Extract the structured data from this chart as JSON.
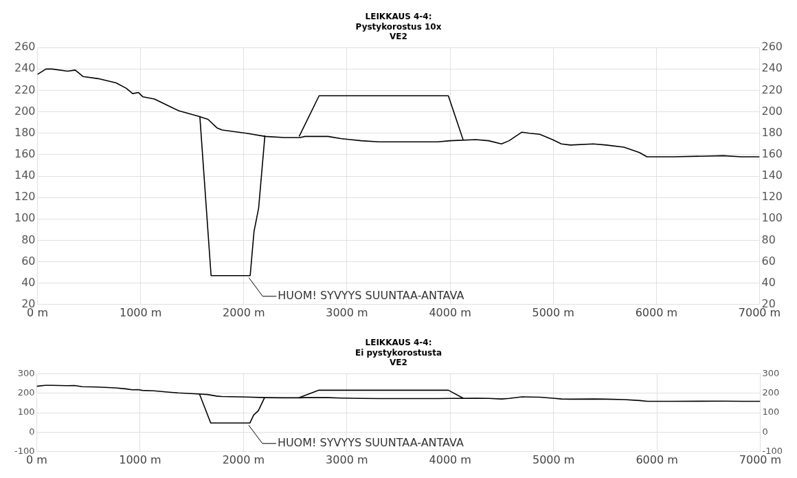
{
  "chart_data": [
    {
      "type": "line",
      "title": "LEIKKAUS 4-4:",
      "subtitle": "Pystykorostus 10x\nVE2",
      "series": [
        {
          "type": "line",
          "color": "#000000",
          "x": [
            0,
            82,
            144,
            292,
            366,
            441,
            589,
            762,
            861,
            923,
            980,
            1022,
            1134,
            1282,
            1369,
            1554,
            1653,
            1740,
            1790,
            2025,
            2210,
            2396,
            2545,
            2594,
            2817,
            2941,
            3139,
            3312,
            3433,
            3879,
            4000,
            4250,
            4374,
            4498,
            4572,
            4696,
            4770,
            4869,
            4993,
            5079,
            5166,
            5389,
            5513,
            5686,
            5835,
            5909,
            6156,
            6651,
            6824,
            7000
          ],
          "values": [
            235,
            240,
            240,
            238,
            239,
            233,
            231,
            227,
            222,
            217,
            218,
            214,
            212,
            205,
            201,
            196,
            193,
            185,
            183,
            180,
            177,
            176,
            176,
            177,
            177,
            175,
            173,
            172,
            172,
            172,
            173,
            174,
            173,
            170,
            173,
            181,
            180,
            179,
            174,
            170,
            169,
            170,
            169,
            167,
            162,
            158,
            158,
            159,
            158,
            158
          ]
        },
        {
          "type": "line",
          "color": "#000000",
          "x": [
            1574,
            1683,
            2062,
            2099,
            2144,
            2205
          ],
          "values": [
            196,
            47,
            47,
            88,
            110,
            178
          ]
        },
        {
          "type": "line",
          "color": "#000000",
          "x": [
            2537,
            2730,
            3983,
            4126
          ],
          "values": [
            177,
            215,
            215,
            174
          ]
        }
      ],
      "xlim": [
        0,
        7000
      ],
      "xticks": [
        {
          "value": 0,
          "label": "0 m"
        },
        {
          "value": 1000,
          "label": "1000 m"
        },
        {
          "value": 2000,
          "label": "2000 m"
        },
        {
          "value": 3000,
          "label": "3000 m"
        },
        {
          "value": 4000,
          "label": "4000 m"
        },
        {
          "value": 5000,
          "label": "5000 m"
        },
        {
          "value": 6000,
          "label": "6000 m"
        },
        {
          "value": 7000,
          "label": "7000 m"
        }
      ],
      "ylim": [
        20,
        260
      ],
      "yticks": [
        20,
        40,
        60,
        80,
        100,
        120,
        140,
        160,
        180,
        200,
        220,
        240,
        260
      ],
      "y2lim": [
        20,
        260
      ],
      "y2ticks": [
        20,
        40,
        60,
        80,
        100,
        120,
        140,
        160,
        180,
        200,
        220,
        240,
        260
      ],
      "grid": true,
      "annotations": [
        {
          "text": "HUOM! SYVYYS SUUNTAA-ANTAVA",
          "x": 2050,
          "y": 47
        }
      ]
    },
    {
      "type": "line",
      "title": "LEIKKAUS 4-4:",
      "subtitle": "Ei pystykorostusta\nVE2",
      "series": [
        {
          "type": "line",
          "color": "#000000",
          "x": [
            0,
            82,
            144,
            292,
            366,
            441,
            589,
            762,
            861,
            923,
            980,
            1022,
            1134,
            1282,
            1369,
            1554,
            1653,
            1740,
            1790,
            2025,
            2210,
            2396,
            2545,
            2594,
            2817,
            2941,
            3139,
            3312,
            3433,
            3879,
            4000,
            4250,
            4374,
            4498,
            4572,
            4696,
            4770,
            4869,
            4993,
            5079,
            5166,
            5389,
            5513,
            5686,
            5835,
            5909,
            6156,
            6651,
            6824,
            7000
          ],
          "values": [
            235,
            240,
            240,
            238,
            239,
            233,
            231,
            227,
            222,
            217,
            218,
            214,
            212,
            205,
            201,
            196,
            193,
            185,
            183,
            180,
            177,
            176,
            176,
            177,
            177,
            175,
            173,
            172,
            172,
            172,
            173,
            174,
            173,
            170,
            173,
            181,
            180,
            179,
            174,
            170,
            169,
            170,
            169,
            167,
            162,
            158,
            158,
            159,
            158,
            158
          ]
        },
        {
          "type": "line",
          "color": "#000000",
          "x": [
            1574,
            1683,
            2062,
            2099,
            2144,
            2205
          ],
          "values": [
            196,
            47,
            47,
            88,
            110,
            178
          ]
        },
        {
          "type": "line",
          "color": "#000000",
          "x": [
            2537,
            2730,
            3983,
            4126
          ],
          "values": [
            177,
            215,
            215,
            174
          ]
        }
      ],
      "xlim": [
        0,
        7000
      ],
      "xticks": [
        {
          "value": 0,
          "label": "0 m"
        },
        {
          "value": 1000,
          "label": "1000 m"
        },
        {
          "value": 2000,
          "label": "2000 m"
        },
        {
          "value": 3000,
          "label": "3000 m"
        },
        {
          "value": 4000,
          "label": "4000 m"
        },
        {
          "value": 5000,
          "label": "5000 m"
        },
        {
          "value": 6000,
          "label": "6000 m"
        },
        {
          "value": 7000,
          "label": "7000 m"
        }
      ],
      "ylim": [
        -100,
        300
      ],
      "yticks": [
        -100,
        0,
        100,
        200,
        300
      ],
      "y2lim": [
        -100,
        300
      ],
      "y2ticks": [
        -100,
        0,
        100,
        200,
        300
      ],
      "grid": true,
      "annotations": [
        {
          "text": "HUOM! SYVYYS SUUNTAA-ANTAVA",
          "x": 2050,
          "y": 47
        }
      ]
    }
  ]
}
